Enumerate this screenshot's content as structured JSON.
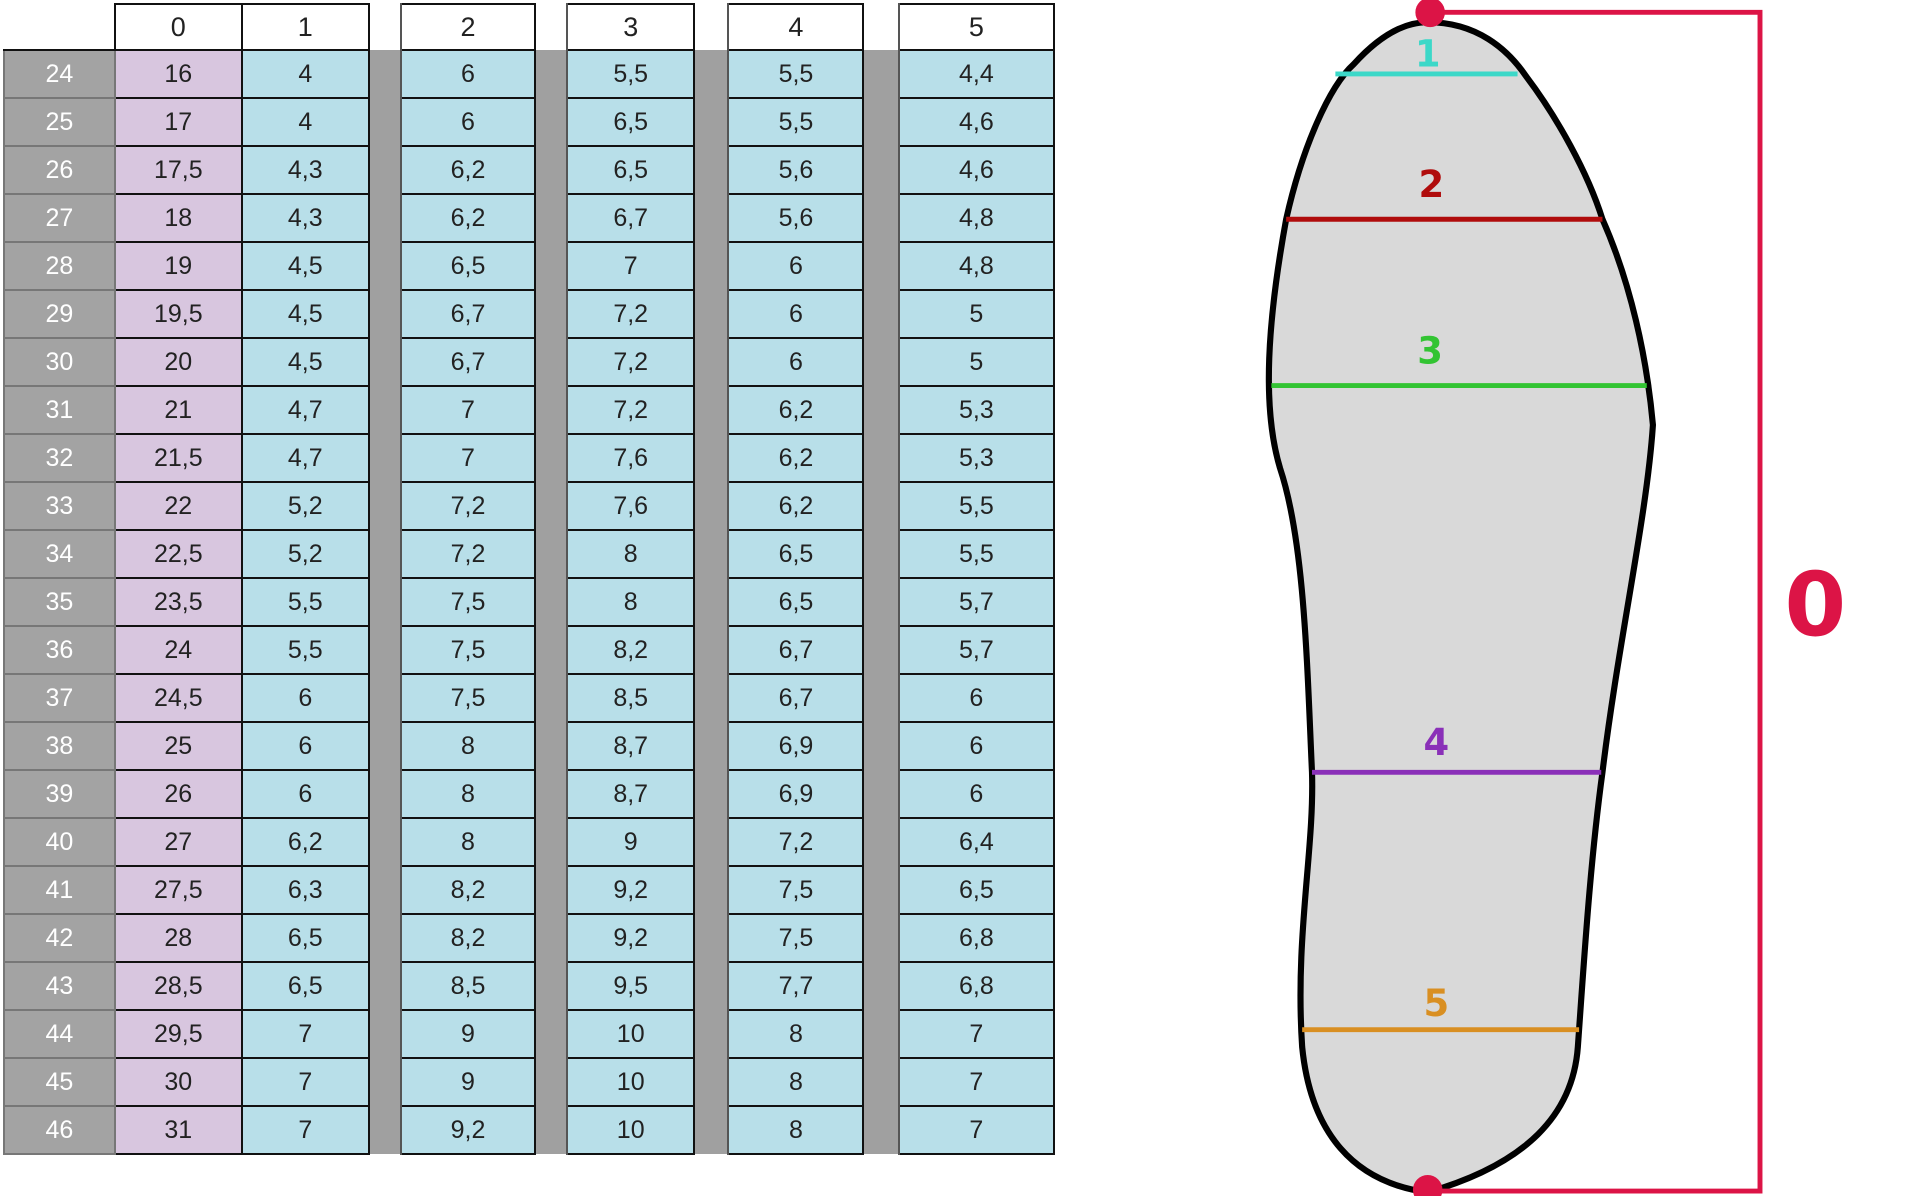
{
  "table": {
    "columns": [
      "0",
      "1",
      "2",
      "3",
      "4",
      "5"
    ],
    "rows": [
      {
        "size": "24",
        "values": [
          "16",
          "4",
          "6",
          "5,5",
          "5,5",
          "4,4"
        ]
      },
      {
        "size": "25",
        "values": [
          "17",
          "4",
          "6",
          "6,5",
          "5,5",
          "4,6"
        ]
      },
      {
        "size": "26",
        "values": [
          "17,5",
          "4,3",
          "6,2",
          "6,5",
          "5,6",
          "4,6"
        ]
      },
      {
        "size": "27",
        "values": [
          "18",
          "4,3",
          "6,2",
          "6,7",
          "5,6",
          "4,8"
        ]
      },
      {
        "size": "28",
        "values": [
          "19",
          "4,5",
          "6,5",
          "7",
          "6",
          "4,8"
        ]
      },
      {
        "size": "29",
        "values": [
          "19,5",
          "4,5",
          "6,7",
          "7,2",
          "6",
          "5"
        ]
      },
      {
        "size": "30",
        "values": [
          "20",
          "4,5",
          "6,7",
          "7,2",
          "6",
          "5"
        ]
      },
      {
        "size": "31",
        "values": [
          "21",
          "4,7",
          "7",
          "7,2",
          "6,2",
          "5,3"
        ]
      },
      {
        "size": "32",
        "values": [
          "21,5",
          "4,7",
          "7",
          "7,6",
          "6,2",
          "5,3"
        ]
      },
      {
        "size": "33",
        "values": [
          "22",
          "5,2",
          "7,2",
          "7,6",
          "6,2",
          "5,5"
        ]
      },
      {
        "size": "34",
        "values": [
          "22,5",
          "5,2",
          "7,2",
          "8",
          "6,5",
          "5,5"
        ]
      },
      {
        "size": "35",
        "values": [
          "23,5",
          "5,5",
          "7,5",
          "8",
          "6,5",
          "5,7"
        ]
      },
      {
        "size": "36",
        "values": [
          "24",
          "5,5",
          "7,5",
          "8,2",
          "6,7",
          "5,7"
        ]
      },
      {
        "size": "37",
        "values": [
          "24,5",
          "6",
          "7,5",
          "8,5",
          "6,7",
          "6"
        ]
      },
      {
        "size": "38",
        "values": [
          "25",
          "6",
          "8",
          "8,7",
          "6,9",
          "6"
        ]
      },
      {
        "size": "39",
        "values": [
          "26",
          "6",
          "8",
          "8,7",
          "6,9",
          "6"
        ]
      },
      {
        "size": "40",
        "values": [
          "27",
          "6,2",
          "8",
          "9",
          "7,2",
          "6,4"
        ]
      },
      {
        "size": "41",
        "values": [
          "27,5",
          "6,3",
          "8,2",
          "9,2",
          "7,5",
          "6,5"
        ]
      },
      {
        "size": "42",
        "values": [
          "28",
          "6,5",
          "8,2",
          "9,2",
          "7,5",
          "6,8"
        ]
      },
      {
        "size": "43",
        "values": [
          "28,5",
          "6,5",
          "8,5",
          "9,5",
          "7,7",
          "6,8"
        ]
      },
      {
        "size": "44",
        "values": [
          "29,5",
          "7",
          "9",
          "10",
          "8",
          "7"
        ]
      },
      {
        "size": "45",
        "values": [
          "30",
          "7",
          "9",
          "10",
          "8",
          "7"
        ]
      },
      {
        "size": "46",
        "values": [
          "31",
          "7",
          "9,2",
          "10",
          "8",
          "7"
        ]
      }
    ]
  },
  "diagram": {
    "length_label": "0",
    "length_color": "#dc1446",
    "measure_lines": [
      {
        "label": "1",
        "color": "#3cd8c8"
      },
      {
        "label": "2",
        "color": "#b00c0c"
      },
      {
        "label": "3",
        "color": "#33c433"
      },
      {
        "label": "4",
        "color": "#8a30b8"
      },
      {
        "label": "5",
        "color": "#d98f22"
      }
    ]
  }
}
